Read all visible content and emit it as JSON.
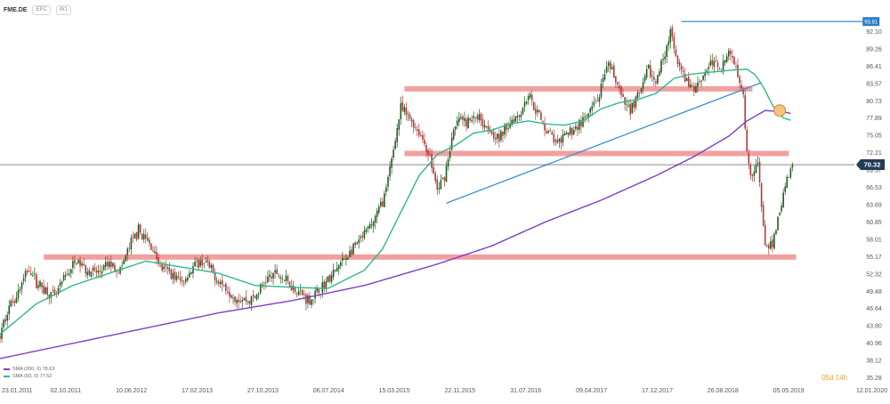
{
  "toolbar": {
    "symbol": "FME.DE",
    "chart_type_label": "EPC",
    "interval_label": "W1"
  },
  "indicators": [
    {
      "label": "SMA (200, 0) 78.63",
      "color": "#7b3fc4"
    },
    {
      "label": "SMA (50, 0) 77.52",
      "color": "#2db88b"
    }
  ],
  "countdown": "05d 14h",
  "chart_data": {
    "type": "candlestick",
    "title": "",
    "ylim": [
      35.28,
      95.3
    ],
    "y_ticks": [
      "92.10",
      "89.26",
      "86.41",
      "83.57",
      "80.73",
      "77.89",
      "75.05",
      "72.21",
      "69.37",
      "66.53",
      "63.69",
      "60.85",
      "58.01",
      "55.17",
      "52.32",
      "49.48",
      "46.64",
      "43.80",
      "40.96",
      "38.12",
      "35.28"
    ],
    "x_tick_labels": [
      "23.01.2011",
      "02.10.2011",
      "10.06.2012",
      "17.02.2013",
      "27.10.2013",
      "06.07.2014",
      "15.03.2015",
      "22.11.2015",
      "31.07.2016",
      "09.04.2017",
      "17.12.2017",
      "26.08.2018",
      "05.05.2019",
      "12.01.2020"
    ],
    "x_range_weeks": [
      0,
      469
    ],
    "last_price": "70.32",
    "high_price": "93.81",
    "price_anchors": [
      [
        0,
        42.0
      ],
      [
        4,
        46.5
      ],
      [
        10,
        49.5
      ],
      [
        16,
        53.5
      ],
      [
        20,
        51.0
      ],
      [
        26,
        49.5
      ],
      [
        30,
        48.5
      ],
      [
        36,
        52.0
      ],
      [
        42,
        54.5
      ],
      [
        48,
        53.0
      ],
      [
        54,
        52.5
      ],
      [
        60,
        54.0
      ],
      [
        66,
        53.0
      ],
      [
        72,
        57.5
      ],
      [
        76,
        59.5
      ],
      [
        80,
        58.0
      ],
      [
        84,
        56.5
      ],
      [
        88,
        53.5
      ],
      [
        94,
        52.5
      ],
      [
        100,
        51.0
      ],
      [
        106,
        53.5
      ],
      [
        112,
        54.5
      ],
      [
        118,
        52.0
      ],
      [
        124,
        50.0
      ],
      [
        130,
        48.5
      ],
      [
        136,
        48.0
      ],
      [
        140,
        48.5
      ],
      [
        146,
        51.5
      ],
      [
        152,
        52.5
      ],
      [
        158,
        51.0
      ],
      [
        164,
        49.5
      ],
      [
        170,
        48.0
      ],
      [
        176,
        50.0
      ],
      [
        182,
        52.0
      ],
      [
        188,
        54.5
      ],
      [
        194,
        56.5
      ],
      [
        198,
        58.0
      ],
      [
        204,
        60.5
      ],
      [
        208,
        63.0
      ],
      [
        212,
        66.0
      ],
      [
        216,
        73.0
      ],
      [
        220,
        79.5
      ],
      [
        226,
        77.5
      ],
      [
        232,
        74.5
      ],
      [
        236,
        71.5
      ],
      [
        240,
        66.0
      ],
      [
        244,
        68.5
      ],
      [
        248,
        74.5
      ],
      [
        252,
        78.0
      ],
      [
        256,
        77.0
      ],
      [
        262,
        78.5
      ],
      [
        268,
        76.5
      ],
      [
        274,
        74.5
      ],
      [
        280,
        77.5
      ],
      [
        286,
        79.0
      ],
      [
        290,
        82.0
      ],
      [
        294,
        79.5
      ],
      [
        298,
        77.0
      ],
      [
        302,
        75.5
      ],
      [
        306,
        73.5
      ],
      [
        310,
        75.0
      ],
      [
        316,
        76.5
      ],
      [
        322,
        78.0
      ],
      [
        328,
        81.0
      ],
      [
        334,
        86.5
      ],
      [
        338,
        84.5
      ],
      [
        342,
        80.5
      ],
      [
        346,
        79.5
      ],
      [
        352,
        82.5
      ],
      [
        356,
        86.0
      ],
      [
        360,
        83.5
      ],
      [
        364,
        88.0
      ],
      [
        368,
        92.0
      ],
      [
        372,
        86.5
      ],
      [
        376,
        84.5
      ],
      [
        380,
        82.5
      ],
      [
        386,
        85.0
      ],
      [
        390,
        87.0
      ],
      [
        396,
        86.5
      ],
      [
        400,
        88.5
      ],
      [
        404,
        87.0
      ],
      [
        408,
        82.0
      ],
      [
        410,
        72.0
      ],
      [
        413,
        68.5
      ],
      [
        416,
        70.5
      ],
      [
        418,
        63.5
      ],
      [
        420,
        57.5
      ],
      [
        422,
        55.8
      ],
      [
        424,
        57.5
      ],
      [
        427,
        61.5
      ],
      [
        430,
        65.5
      ],
      [
        433,
        69.0
      ],
      [
        435,
        70.32
      ]
    ],
    "sma50_anchors": [
      [
        0,
        42.5
      ],
      [
        20,
        47.5
      ],
      [
        40,
        50.5
      ],
      [
        60,
        52.5
      ],
      [
        80,
        54.5
      ],
      [
        100,
        53.5
      ],
      [
        120,
        52.5
      ],
      [
        140,
        50.5
      ],
      [
        160,
        50.2
      ],
      [
        180,
        50.0
      ],
      [
        200,
        53.0
      ],
      [
        210,
        56.5
      ],
      [
        220,
        62.5
      ],
      [
        230,
        68.5
      ],
      [
        240,
        72.0
      ],
      [
        250,
        73.5
      ],
      [
        260,
        75.5
      ],
      [
        270,
        76.0
      ],
      [
        280,
        77.0
      ],
      [
        290,
        77.5
      ],
      [
        300,
        77.0
      ],
      [
        310,
        76.8
      ],
      [
        320,
        77.5
      ],
      [
        330,
        79.5
      ],
      [
        340,
        80.5
      ],
      [
        350,
        81.0
      ],
      [
        360,
        82.0
      ],
      [
        370,
        84.5
      ],
      [
        380,
        85.2
      ],
      [
        390,
        85.5
      ],
      [
        400,
        85.8
      ],
      [
        410,
        86.0
      ],
      [
        415,
        85.0
      ],
      [
        420,
        82.5
      ],
      [
        425,
        79.5
      ],
      [
        430,
        78.0
      ],
      [
        435,
        77.52
      ]
    ],
    "sma200_anchors": [
      [
        0,
        38.5
      ],
      [
        40,
        41.0
      ],
      [
        80,
        43.5
      ],
      [
        120,
        46.0
      ],
      [
        160,
        48.0
      ],
      [
        200,
        50.5
      ],
      [
        240,
        54.0
      ],
      [
        270,
        57.0
      ],
      [
        300,
        61.0
      ],
      [
        330,
        64.5
      ],
      [
        360,
        68.5
      ],
      [
        380,
        71.5
      ],
      [
        400,
        75.0
      ],
      [
        410,
        77.5
      ],
      [
        420,
        79.2
      ],
      [
        430,
        79.0
      ],
      [
        435,
        78.63
      ]
    ],
    "sma50_label": "SMA (50, 0) 77.52",
    "sma200_label": "SMA (200, 0) 78.63",
    "annotations": {
      "resistance_zones": [
        {
          "from_week": 24,
          "to_week": 437,
          "low": 54.8,
          "high": 55.6
        },
        {
          "from_week": 222,
          "to_week": 433,
          "low": 71.8,
          "high": 72.6
        },
        {
          "from_week": 222,
          "to_week": 413,
          "low": 82.4,
          "high": 83.2
        }
      ],
      "trendline": {
        "from_week": 245,
        "from_price": 64.0,
        "to_week": 418,
        "to_price": 83.8
      },
      "high_line": {
        "from_week": 374,
        "to_week": 474,
        "price": 93.81
      },
      "marker_circle": {
        "week": 428,
        "price": 79.2
      }
    },
    "colors": {
      "up": "#1f5e20",
      "down": "#b23a3a",
      "sma50": "#2db88b",
      "sma200": "#7b3fc4",
      "zone": "#ef8f8f",
      "trendline": "#3b8fd0",
      "marker": "#f3c37a",
      "axis_text": "#555555",
      "last_price_bg": "#243c55",
      "high_bg": "#2a7fc5",
      "countdown": "#e8a33a"
    }
  }
}
